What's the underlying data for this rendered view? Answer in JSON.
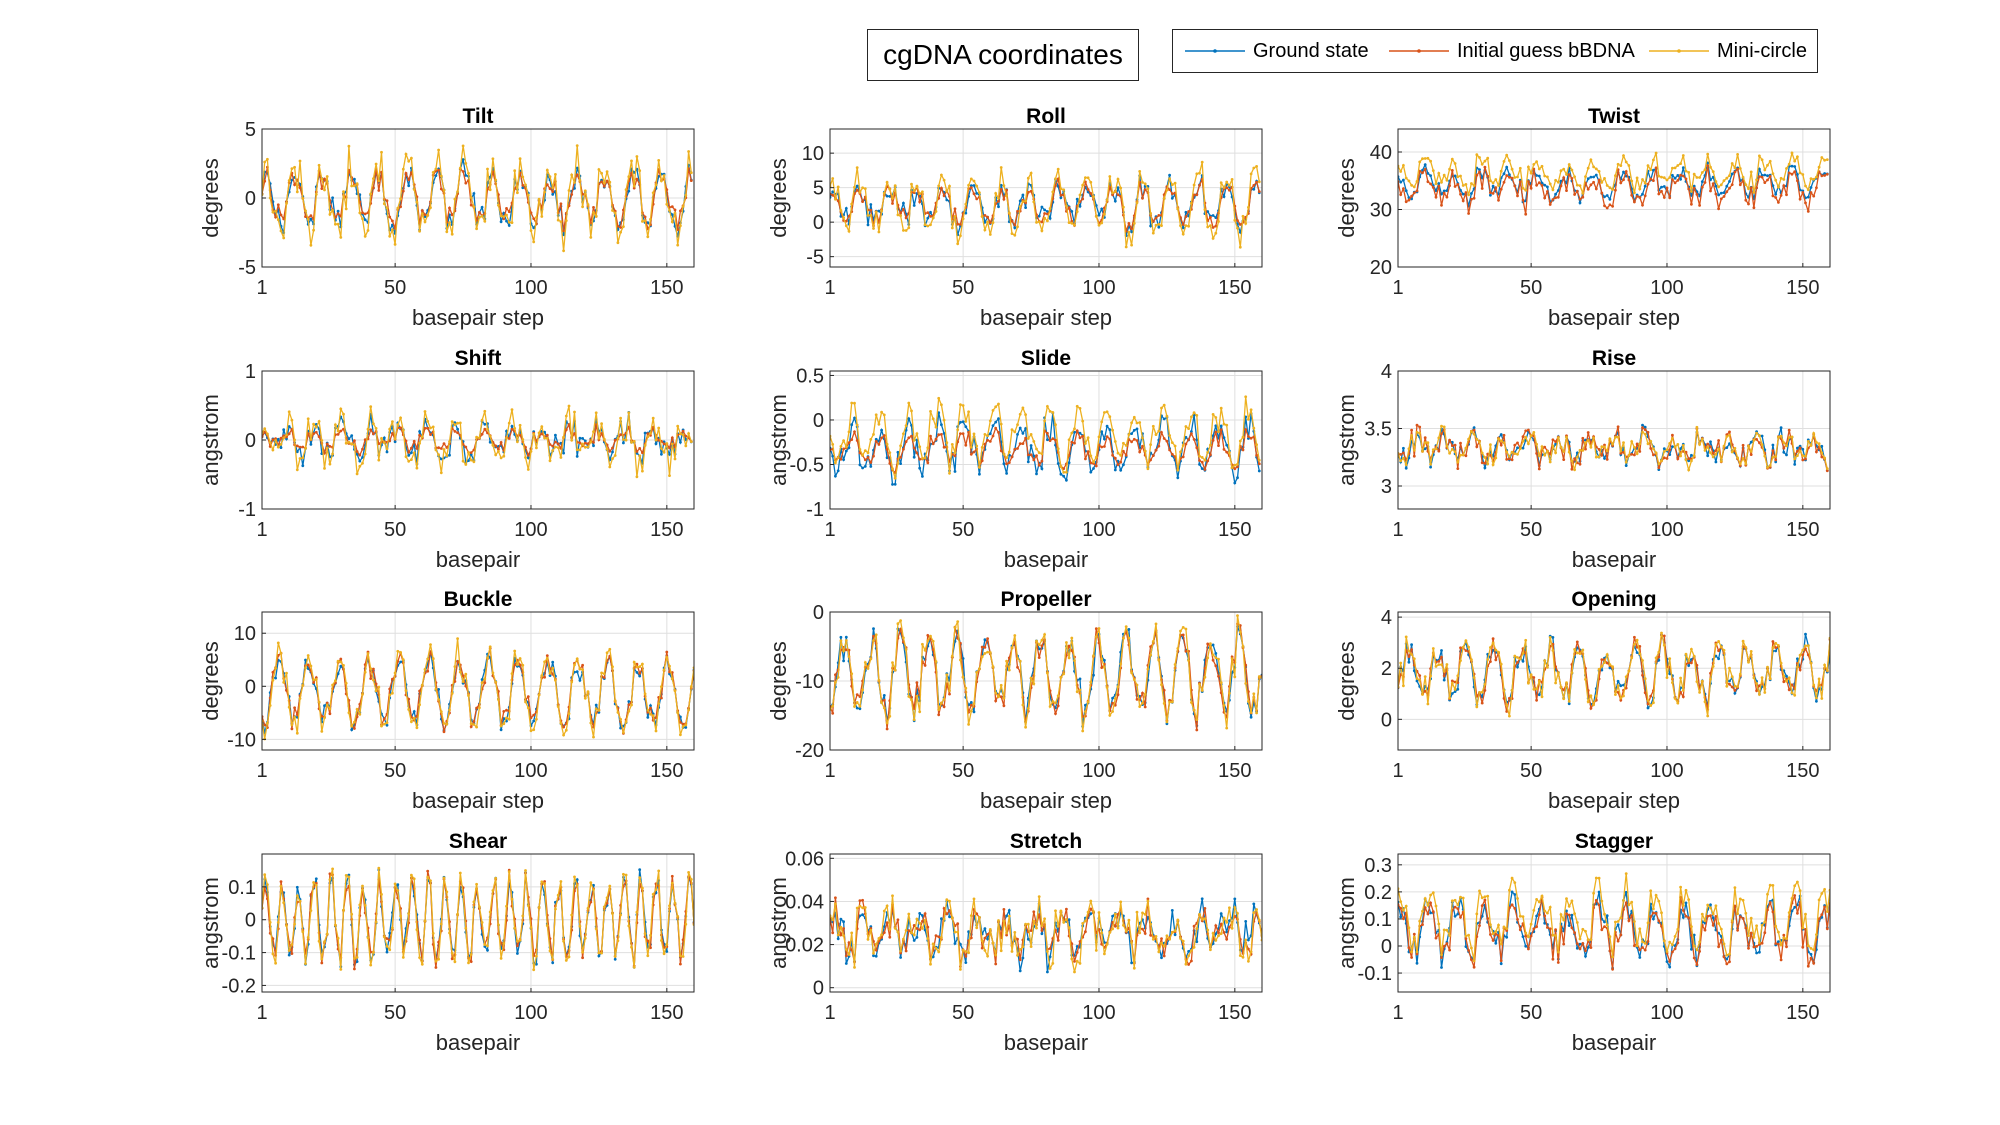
{
  "figure_title": "cgDNA coordinates",
  "legend": [
    {
      "name": "Ground state",
      "color": "#0072BD"
    },
    {
      "name": "Initial guess bBDNA",
      "color": "#D95319"
    },
    {
      "name": "Mini-circle",
      "color": "#EDB120"
    }
  ],
  "chart_data": [
    {
      "type": "line",
      "title": "Tilt",
      "xlabel": "basepair step",
      "ylabel": "degrees",
      "xlim": [
        1,
        160
      ],
      "ylim": [
        -5,
        5
      ],
      "xticks": [
        1,
        50,
        100,
        150
      ],
      "yticks": [
        -5,
        0,
        5
      ],
      "grid": true,
      "n": 159,
      "base": 0,
      "amp": [
        1.8,
        1.6,
        2.3
      ],
      "period": [
        10.4,
        10.4,
        10.4
      ],
      "noise": [
        1.1,
        0.9,
        1.6
      ]
    },
    {
      "type": "line",
      "title": "Roll",
      "xlabel": "basepair step",
      "ylabel": "degrees",
      "xlim": [
        1,
        160
      ],
      "ylim": [
        -6.5,
        13.5
      ],
      "xticks": [
        1,
        50,
        100,
        150
      ],
      "yticks": [
        -5,
        0,
        5,
        10
      ],
      "grid": true,
      "n": 159,
      "base": 2.5,
      "amp": [
        2.5,
        2.6,
        4.3
      ],
      "period": [
        10.4,
        10.4,
        10.4
      ],
      "noise": [
        2.2,
        1.5,
        2.4
      ]
    },
    {
      "type": "line",
      "title": "Twist",
      "xlabel": "basepair step",
      "ylabel": "degrees",
      "xlim": [
        1,
        160
      ],
      "ylim": [
        20,
        44
      ],
      "xticks": [
        1,
        50,
        100,
        150
      ],
      "yticks": [
        20,
        30,
        40
      ],
      "grid": true,
      "n": 159,
      "base": 34.5,
      "amp": [
        2.0,
        2.2,
        2.2
      ],
      "period": [
        10.4,
        10.4,
        10.4
      ],
      "noise": [
        1.6,
        2.2,
        2.0
      ],
      "offsets": [
        0,
        -0.8,
        1.8
      ]
    },
    {
      "type": "line",
      "title": "Shift",
      "xlabel": "basepair",
      "ylabel": "angstrom",
      "xlim": [
        1,
        160
      ],
      "ylim": [
        -1,
        1
      ],
      "xticks": [
        1,
        50,
        100,
        150
      ],
      "yticks": [
        -1,
        0,
        1
      ],
      "grid": true,
      "n": 159,
      "base": 0,
      "amp": [
        0.18,
        0.12,
        0.28
      ],
      "period": [
        10.4,
        10.4,
        10.4
      ],
      "noise": [
        0.22,
        0.1,
        0.26
      ]
    },
    {
      "type": "line",
      "title": "Slide",
      "xlabel": "basepair",
      "ylabel": "angstrom",
      "xlim": [
        1,
        160
      ],
      "ylim": [
        -1,
        0.55
      ],
      "xticks": [
        1,
        50,
        100,
        150
      ],
      "yticks": [
        -1,
        -0.5,
        0,
        0.5
      ],
      "grid": true,
      "n": 159,
      "base": -0.25,
      "amp": [
        0.22,
        0.14,
        0.26
      ],
      "period": [
        10.4,
        10.4,
        10.4
      ],
      "noise": [
        0.2,
        0.12,
        0.22
      ],
      "offsets": [
        -0.05,
        -0.08,
        0.08
      ]
    },
    {
      "type": "line",
      "title": "Rise",
      "xlabel": "basepair",
      "ylabel": "angstrom",
      "xlim": [
        1,
        160
      ],
      "ylim": [
        2.8,
        4
      ],
      "xticks": [
        1,
        50,
        100,
        150
      ],
      "yticks": [
        3,
        3.5,
        4
      ],
      "grid": true,
      "n": 159,
      "base": 3.33,
      "amp": [
        0.08,
        0.08,
        0.08
      ],
      "period": [
        10.4,
        10.4,
        10.4
      ],
      "noise": [
        0.11,
        0.12,
        0.11
      ]
    },
    {
      "type": "line",
      "title": "Buckle",
      "xlabel": "basepair step",
      "ylabel": "degrees",
      "xlim": [
        1,
        160
      ],
      "ylim": [
        -12,
        14
      ],
      "xticks": [
        1,
        50,
        100,
        150
      ],
      "yticks": [
        -10,
        0,
        10
      ],
      "grid": true,
      "n": 160,
      "base": -1,
      "amp": [
        5.5,
        5.5,
        6.5
      ],
      "period": [
        11,
        11,
        11
      ],
      "noise": [
        2.5,
        2.5,
        3.0
      ]
    },
    {
      "type": "line",
      "title": "Propeller",
      "xlabel": "basepair step",
      "ylabel": "degrees",
      "xlim": [
        1,
        160
      ],
      "ylim": [
        -20,
        0
      ],
      "xticks": [
        1,
        50,
        100,
        150
      ],
      "yticks": [
        -20,
        -10,
        0
      ],
      "grid": true,
      "n": 160,
      "base": -9,
      "amp": [
        5,
        5,
        5.5
      ],
      "period": [
        10.4,
        10.4,
        10.4
      ],
      "noise": [
        2.5,
        2.5,
        2.8
      ]
    },
    {
      "type": "line",
      "title": "Opening",
      "xlabel": "basepair step",
      "ylabel": "degrees",
      "xlim": [
        1,
        160
      ],
      "ylim": [
        -1.2,
        4.2
      ],
      "xticks": [
        1,
        50,
        100,
        150
      ],
      "yticks": [
        0,
        2,
        4
      ],
      "grid": true,
      "n": 160,
      "base": 1.8,
      "amp": [
        0.9,
        0.9,
        0.9
      ],
      "period": [
        10.4,
        10.4,
        10.4
      ],
      "noise": [
        0.6,
        0.6,
        0.7
      ]
    },
    {
      "type": "line",
      "title": "Shear",
      "xlabel": "basepair",
      "ylabel": "angstrom",
      "xlim": [
        1,
        160
      ],
      "ylim": [
        -0.22,
        0.2
      ],
      "xticks": [
        1,
        50,
        100,
        150
      ],
      "yticks": [
        -0.2,
        -0.1,
        0,
        0.1
      ],
      "grid": true,
      "n": 160,
      "base": 0,
      "amp": [
        0.11,
        0.11,
        0.12
      ],
      "period": [
        6,
        6,
        6
      ],
      "noise": [
        0.05,
        0.05,
        0.05
      ]
    },
    {
      "type": "line",
      "title": "Stretch",
      "xlabel": "basepair",
      "ylabel": "angstrom",
      "xlim": [
        1,
        160
      ],
      "ylim": [
        -0.002,
        0.062
      ],
      "xticks": [
        1,
        50,
        100,
        150
      ],
      "yticks": [
        0,
        0.02,
        0.04,
        0.06
      ],
      "grid": true,
      "n": 160,
      "base": 0.026,
      "amp": [
        0.006,
        0.006,
        0.006
      ],
      "period": [
        10.4,
        10.4,
        10.4
      ],
      "noise": [
        0.01,
        0.01,
        0.012
      ]
    },
    {
      "type": "line",
      "title": "Stagger",
      "xlabel": "basepair",
      "ylabel": "angstrom",
      "xlim": [
        1,
        160
      ],
      "ylim": [
        -0.17,
        0.34
      ],
      "xticks": [
        1,
        50,
        100,
        150
      ],
      "yticks": [
        -0.1,
        0,
        0.1,
        0.2,
        0.3
      ],
      "grid": true,
      "n": 160,
      "base": 0.06,
      "amp": [
        0.08,
        0.08,
        0.09
      ],
      "period": [
        10.4,
        10.4,
        10.4
      ],
      "noise": [
        0.07,
        0.07,
        0.07
      ],
      "offsets": [
        0,
        -0.01,
        0.04
      ]
    }
  ]
}
